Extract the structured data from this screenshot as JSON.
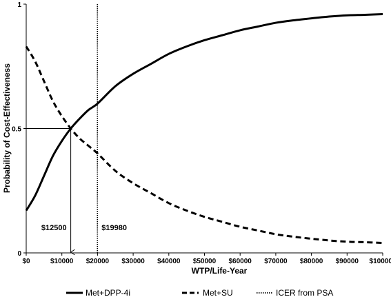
{
  "chart_data": {
    "type": "line",
    "xlabel": "WTP/Life-Year",
    "ylabel": "Probability of Cost-Effectiveness",
    "xlim": [
      0,
      100000
    ],
    "ylim": [
      0,
      1
    ],
    "x_ticks": [
      0,
      10000,
      20000,
      30000,
      40000,
      50000,
      60000,
      70000,
      80000,
      90000,
      100000
    ],
    "x_tick_labels": [
      "$0",
      "$10000",
      "$20000",
      "$30000",
      "$40000",
      "$50000",
      "$60000",
      "$70000",
      "$80000",
      "$90000",
      "$100000"
    ],
    "y_ticks": [
      0,
      0.5,
      1
    ],
    "y_tick_labels": [
      "0",
      "0.5",
      "1"
    ],
    "grid": false,
    "legend_position": "bottom",
    "series": [
      {
        "name": "Met+DPP-4i",
        "style": "solid",
        "x": [
          0,
          2500,
          5000,
          7500,
          10000,
          12500,
          15000,
          17500,
          20000,
          25000,
          30000,
          35000,
          40000,
          45000,
          50000,
          55000,
          60000,
          65000,
          70000,
          75000,
          80000,
          85000,
          90000,
          95000,
          100000
        ],
        "y": [
          0.17,
          0.23,
          0.31,
          0.39,
          0.45,
          0.5,
          0.54,
          0.575,
          0.6,
          0.67,
          0.72,
          0.76,
          0.8,
          0.83,
          0.855,
          0.875,
          0.895,
          0.91,
          0.925,
          0.935,
          0.943,
          0.95,
          0.955,
          0.957,
          0.96
        ]
      },
      {
        "name": "Met+SU",
        "style": "dashed",
        "x": [
          0,
          2500,
          5000,
          7500,
          10000,
          12500,
          15000,
          17500,
          20000,
          25000,
          30000,
          35000,
          40000,
          45000,
          50000,
          55000,
          60000,
          65000,
          70000,
          75000,
          80000,
          85000,
          90000,
          95000,
          100000
        ],
        "y": [
          0.83,
          0.77,
          0.69,
          0.61,
          0.55,
          0.5,
          0.46,
          0.43,
          0.4,
          0.33,
          0.28,
          0.24,
          0.2,
          0.17,
          0.145,
          0.125,
          0.105,
          0.09,
          0.075,
          0.065,
          0.057,
          0.05,
          0.045,
          0.043,
          0.04
        ]
      }
    ],
    "icer": {
      "name": "ICER from PSA",
      "style": "dotted",
      "x": 19980
    },
    "annotations": [
      {
        "text": "$12500",
        "x": 12500,
        "y": 0.5
      },
      {
        "text": "$19980",
        "x": 19980
      }
    ]
  }
}
